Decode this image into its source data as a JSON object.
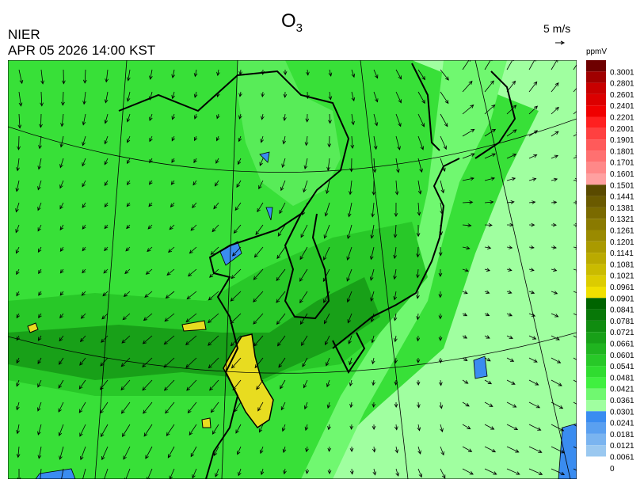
{
  "header": {
    "title": {
      "text": "O",
      "subscript": "3"
    },
    "agency": "NIER",
    "timestamp": "APR 05 2026 14:00 KST",
    "wind_scale": "5 m/s"
  },
  "colorbar": {
    "unit": "ppmV",
    "levels": [
      {
        "label": "0.3001",
        "color": "#6e0000"
      },
      {
        "label": "0.2801",
        "color": "#a00000"
      },
      {
        "label": "0.2601",
        "color": "#c80000"
      },
      {
        "label": "0.2401",
        "color": "#dc0000"
      },
      {
        "label": "0.2201",
        "color": "#f00000"
      },
      {
        "label": "0.2001",
        "color": "#ff2020"
      },
      {
        "label": "0.1901",
        "color": "#ff4040"
      },
      {
        "label": "0.1801",
        "color": "#ff5a5a"
      },
      {
        "label": "0.1701",
        "color": "#ff7070"
      },
      {
        "label": "0.1601",
        "color": "#ff8888"
      },
      {
        "label": "0.1501",
        "color": "#ffa0a0"
      },
      {
        "label": "0.1441",
        "color": "#5a4a00"
      },
      {
        "label": "0.1381",
        "color": "#6a5a00"
      },
      {
        "label": "0.1321",
        "color": "#7a6a00"
      },
      {
        "label": "0.1261",
        "color": "#8a7a00"
      },
      {
        "label": "0.1201",
        "color": "#9a8a00"
      },
      {
        "label": "0.1141",
        "color": "#aa9a00"
      },
      {
        "label": "0.1081",
        "color": "#baaa00"
      },
      {
        "label": "0.1021",
        "color": "#cabb00"
      },
      {
        "label": "0.0961",
        "color": "#dccc00"
      },
      {
        "label": "0.0901",
        "color": "#f0e000"
      },
      {
        "label": "0.0841",
        "color": "#006400"
      },
      {
        "label": "0.0781",
        "color": "#087808"
      },
      {
        "label": "0.0721",
        "color": "#108c10"
      },
      {
        "label": "0.0661",
        "color": "#18a018"
      },
      {
        "label": "0.0601",
        "color": "#20b420"
      },
      {
        "label": "0.0541",
        "color": "#28c828"
      },
      {
        "label": "0.0481",
        "color": "#30dc30"
      },
      {
        "label": "0.0421",
        "color": "#40f040"
      },
      {
        "label": "0.0361",
        "color": "#70f870"
      },
      {
        "label": "0.0301",
        "color": "#a0ffa0"
      },
      {
        "label": "0.0241",
        "color": "#3a8cf0"
      },
      {
        "label": "0.0181",
        "color": "#5aa0f0"
      },
      {
        "label": "0.0121",
        "color": "#7ab4f0"
      },
      {
        "label": "0.0061",
        "color": "#9ac8f0"
      },
      {
        "label": "0",
        "color": "#ffffff"
      }
    ]
  }
}
